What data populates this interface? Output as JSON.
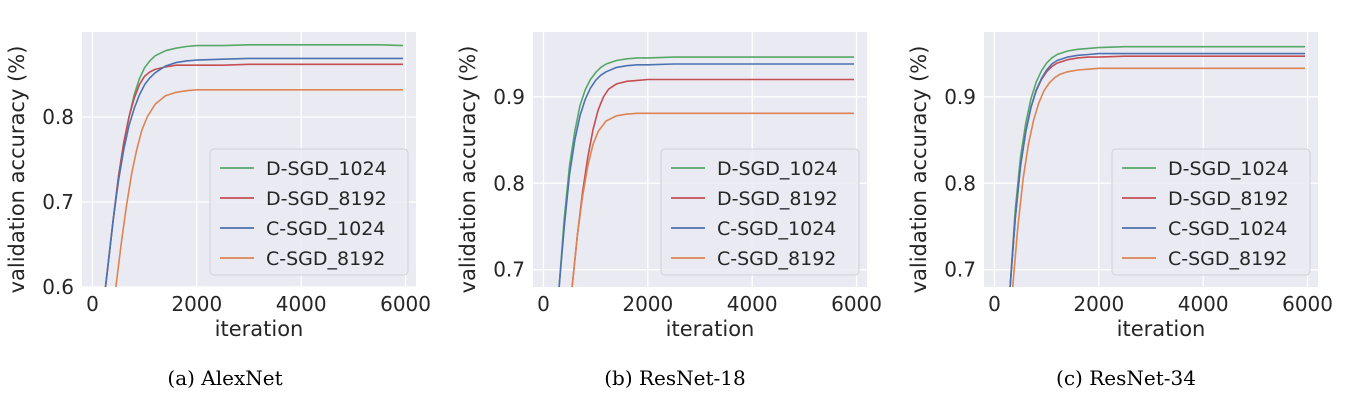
{
  "colors": {
    "axes_bg": "#EAEAF2",
    "grid": "#FFFFFF",
    "d_sgd_1024": "#55A868",
    "d_sgd_8192": "#C44E52",
    "c_sgd_1024": "#4C72B0",
    "c_sgd_8192": "#DD8452"
  },
  "chart_data": [
    {
      "type": "line",
      "caption": "(a) AlexNet",
      "xlabel": "iteration",
      "ylabel": "validation accuracy (%)",
      "xlim": [
        -200,
        6200
      ],
      "ylim": [
        0.6,
        0.9
      ],
      "xticks": [
        0,
        2000,
        4000,
        6000
      ],
      "xtick_labels": [
        "0",
        "2000",
        "4000",
        "6000"
      ],
      "yticks": [
        0.6,
        0.7,
        0.8
      ],
      "ytick_labels": [
        "0.6",
        "0.7",
        "0.8"
      ],
      "legend": "lower-right",
      "series": [
        {
          "name": "D-SGD_1024",
          "x": [
            250,
            400,
            500,
            600,
            700,
            800,
            900,
            1000,
            1100,
            1200,
            1400,
            1600,
            1800,
            2000,
            2500,
            3000,
            3500,
            4000,
            4500,
            5000,
            5500,
            5950
          ],
          "values": [
            0.6,
            0.68,
            0.73,
            0.77,
            0.8,
            0.826,
            0.845,
            0.858,
            0.866,
            0.872,
            0.878,
            0.881,
            0.883,
            0.884,
            0.884,
            0.885,
            0.885,
            0.885,
            0.885,
            0.885,
            0.885,
            0.884
          ]
        },
        {
          "name": "D-SGD_8192",
          "x": [
            250,
            400,
            500,
            600,
            700,
            800,
            900,
            1000,
            1100,
            1200,
            1400,
            1600,
            1800,
            2000,
            2500,
            3000,
            3500,
            4000,
            4500,
            5000,
            5500,
            5950
          ],
          "values": [
            0.6,
            0.68,
            0.73,
            0.77,
            0.8,
            0.822,
            0.838,
            0.848,
            0.853,
            0.856,
            0.859,
            0.861,
            0.861,
            0.861,
            0.861,
            0.862,
            0.862,
            0.862,
            0.862,
            0.862,
            0.862,
            0.862
          ]
        },
        {
          "name": "C-SGD_1024",
          "x": [
            250,
            400,
            500,
            600,
            700,
            800,
            900,
            1000,
            1100,
            1200,
            1400,
            1600,
            1800,
            2000,
            2500,
            3000,
            3500,
            4000,
            4500,
            5000,
            5500,
            5950
          ],
          "values": [
            0.6,
            0.68,
            0.725,
            0.762,
            0.79,
            0.81,
            0.826,
            0.838,
            0.846,
            0.852,
            0.86,
            0.864,
            0.866,
            0.867,
            0.868,
            0.869,
            0.869,
            0.869,
            0.869,
            0.869,
            0.869,
            0.869
          ]
        },
        {
          "name": "C-SGD_8192",
          "x": [
            450,
            550,
            650,
            750,
            850,
            950,
            1050,
            1200,
            1400,
            1600,
            1800,
            2000,
            2500,
            3000,
            3500,
            4000,
            4500,
            5000,
            5500,
            5950
          ],
          "values": [
            0.6,
            0.65,
            0.695,
            0.733,
            0.762,
            0.785,
            0.8,
            0.815,
            0.825,
            0.829,
            0.831,
            0.832,
            0.832,
            0.832,
            0.832,
            0.832,
            0.832,
            0.832,
            0.832,
            0.832
          ]
        }
      ]
    },
    {
      "type": "line",
      "caption": "(b) ResNet-18",
      "xlabel": "iteration",
      "ylabel": "validation accuracy (%)",
      "xlim": [
        -200,
        6200
      ],
      "ylim": [
        0.68,
        0.975
      ],
      "xticks": [
        0,
        2000,
        4000,
        6000
      ],
      "xtick_labels": [
        "0",
        "2000",
        "4000",
        "6000"
      ],
      "yticks": [
        0.7,
        0.8,
        0.9
      ],
      "ytick_labels": [
        "0.7",
        "0.8",
        "0.9"
      ],
      "legend": "lower-right",
      "series": [
        {
          "name": "D-SGD_1024",
          "x": [
            300,
            400,
            500,
            600,
            700,
            800,
            900,
            1000,
            1100,
            1200,
            1400,
            1600,
            1800,
            2000,
            2500,
            3000,
            3500,
            4000,
            4500,
            5000,
            5500,
            5950
          ],
          "values": [
            0.68,
            0.76,
            0.82,
            0.86,
            0.89,
            0.908,
            0.92,
            0.928,
            0.934,
            0.938,
            0.942,
            0.944,
            0.945,
            0.945,
            0.946,
            0.946,
            0.946,
            0.946,
            0.946,
            0.946,
            0.946,
            0.946
          ]
        },
        {
          "name": "D-SGD_8192",
          "x": [
            550,
            650,
            750,
            850,
            950,
            1050,
            1150,
            1250,
            1400,
            1600,
            1800,
            2000,
            2500,
            3000,
            3500,
            4000,
            4500,
            5000,
            5500,
            5950
          ],
          "values": [
            0.68,
            0.74,
            0.79,
            0.83,
            0.862,
            0.885,
            0.9,
            0.909,
            0.915,
            0.918,
            0.919,
            0.92,
            0.92,
            0.92,
            0.92,
            0.92,
            0.92,
            0.92,
            0.92,
            0.92
          ]
        },
        {
          "name": "C-SGD_1024",
          "x": [
            300,
            400,
            500,
            600,
            700,
            800,
            900,
            1000,
            1100,
            1200,
            1400,
            1600,
            1800,
            2000,
            2500,
            3000,
            3500,
            4000,
            4500,
            5000,
            5500,
            5950
          ],
          "values": [
            0.68,
            0.75,
            0.81,
            0.85,
            0.878,
            0.897,
            0.91,
            0.919,
            0.925,
            0.929,
            0.934,
            0.936,
            0.937,
            0.937,
            0.938,
            0.938,
            0.938,
            0.938,
            0.938,
            0.938,
            0.938,
            0.938
          ]
        },
        {
          "name": "C-SGD_8192",
          "x": [
            550,
            650,
            750,
            850,
            950,
            1050,
            1200,
            1400,
            1600,
            1800,
            2000,
            2500,
            3000,
            3500,
            4000,
            4500,
            5000,
            5500,
            5950
          ],
          "values": [
            0.68,
            0.74,
            0.785,
            0.82,
            0.845,
            0.86,
            0.872,
            0.878,
            0.88,
            0.881,
            0.881,
            0.881,
            0.881,
            0.881,
            0.881,
            0.881,
            0.881,
            0.881,
            0.881
          ]
        }
      ]
    },
    {
      "type": "line",
      "caption": "(c) ResNet-34",
      "xlabel": "iteration",
      "ylabel": "validation accuracy (%)",
      "xlim": [
        -200,
        6200
      ],
      "ylim": [
        0.68,
        0.975
      ],
      "xticks": [
        0,
        2000,
        4000,
        6000
      ],
      "xtick_labels": [
        "0",
        "2000",
        "4000",
        "6000"
      ],
      "yticks": [
        0.7,
        0.8,
        0.9
      ],
      "ytick_labels": [
        "0.7",
        "0.8",
        "0.9"
      ],
      "legend": "lower-right",
      "series": [
        {
          "name": "D-SGD_1024",
          "x": [
            300,
            400,
            500,
            600,
            700,
            800,
            900,
            1000,
            1100,
            1200,
            1400,
            1600,
            1800,
            2000,
            2500,
            3000,
            3500,
            4000,
            4500,
            5000,
            5500,
            5950
          ],
          "values": [
            0.68,
            0.77,
            0.83,
            0.87,
            0.898,
            0.917,
            0.93,
            0.939,
            0.945,
            0.949,
            0.953,
            0.955,
            0.956,
            0.957,
            0.958,
            0.958,
            0.958,
            0.958,
            0.958,
            0.958,
            0.958,
            0.958
          ]
        },
        {
          "name": "D-SGD_8192",
          "x": [
            300,
            400,
            500,
            600,
            700,
            800,
            900,
            1000,
            1100,
            1200,
            1400,
            1600,
            1800,
            2000,
            2500,
            3000,
            3500,
            4000,
            4500,
            5000,
            5500,
            5950
          ],
          "values": [
            0.68,
            0.76,
            0.82,
            0.86,
            0.888,
            0.907,
            0.92,
            0.929,
            0.935,
            0.939,
            0.943,
            0.945,
            0.946,
            0.946,
            0.947,
            0.947,
            0.947,
            0.947,
            0.947,
            0.947,
            0.947,
            0.947
          ]
        },
        {
          "name": "C-SGD_1024",
          "x": [
            300,
            400,
            500,
            600,
            700,
            800,
            900,
            1000,
            1100,
            1200,
            1400,
            1600,
            1800,
            2000,
            2500,
            3000,
            3500,
            4000,
            4500,
            5000,
            5500,
            5950
          ],
          "values": [
            0.68,
            0.76,
            0.82,
            0.86,
            0.888,
            0.908,
            0.921,
            0.931,
            0.938,
            0.942,
            0.946,
            0.948,
            0.949,
            0.95,
            0.95,
            0.95,
            0.95,
            0.95,
            0.95,
            0.95,
            0.95,
            0.95
          ]
        },
        {
          "name": "C-SGD_8192",
          "x": [
            350,
            450,
            550,
            650,
            750,
            850,
            950,
            1050,
            1150,
            1250,
            1400,
            1600,
            1800,
            2000,
            2500,
            3000,
            3500,
            4000,
            4500,
            5000,
            5500,
            5950
          ],
          "values": [
            0.68,
            0.75,
            0.805,
            0.845,
            0.873,
            0.893,
            0.907,
            0.916,
            0.922,
            0.926,
            0.929,
            0.931,
            0.932,
            0.933,
            0.933,
            0.933,
            0.933,
            0.933,
            0.933,
            0.933,
            0.933,
            0.933
          ]
        }
      ]
    }
  ]
}
